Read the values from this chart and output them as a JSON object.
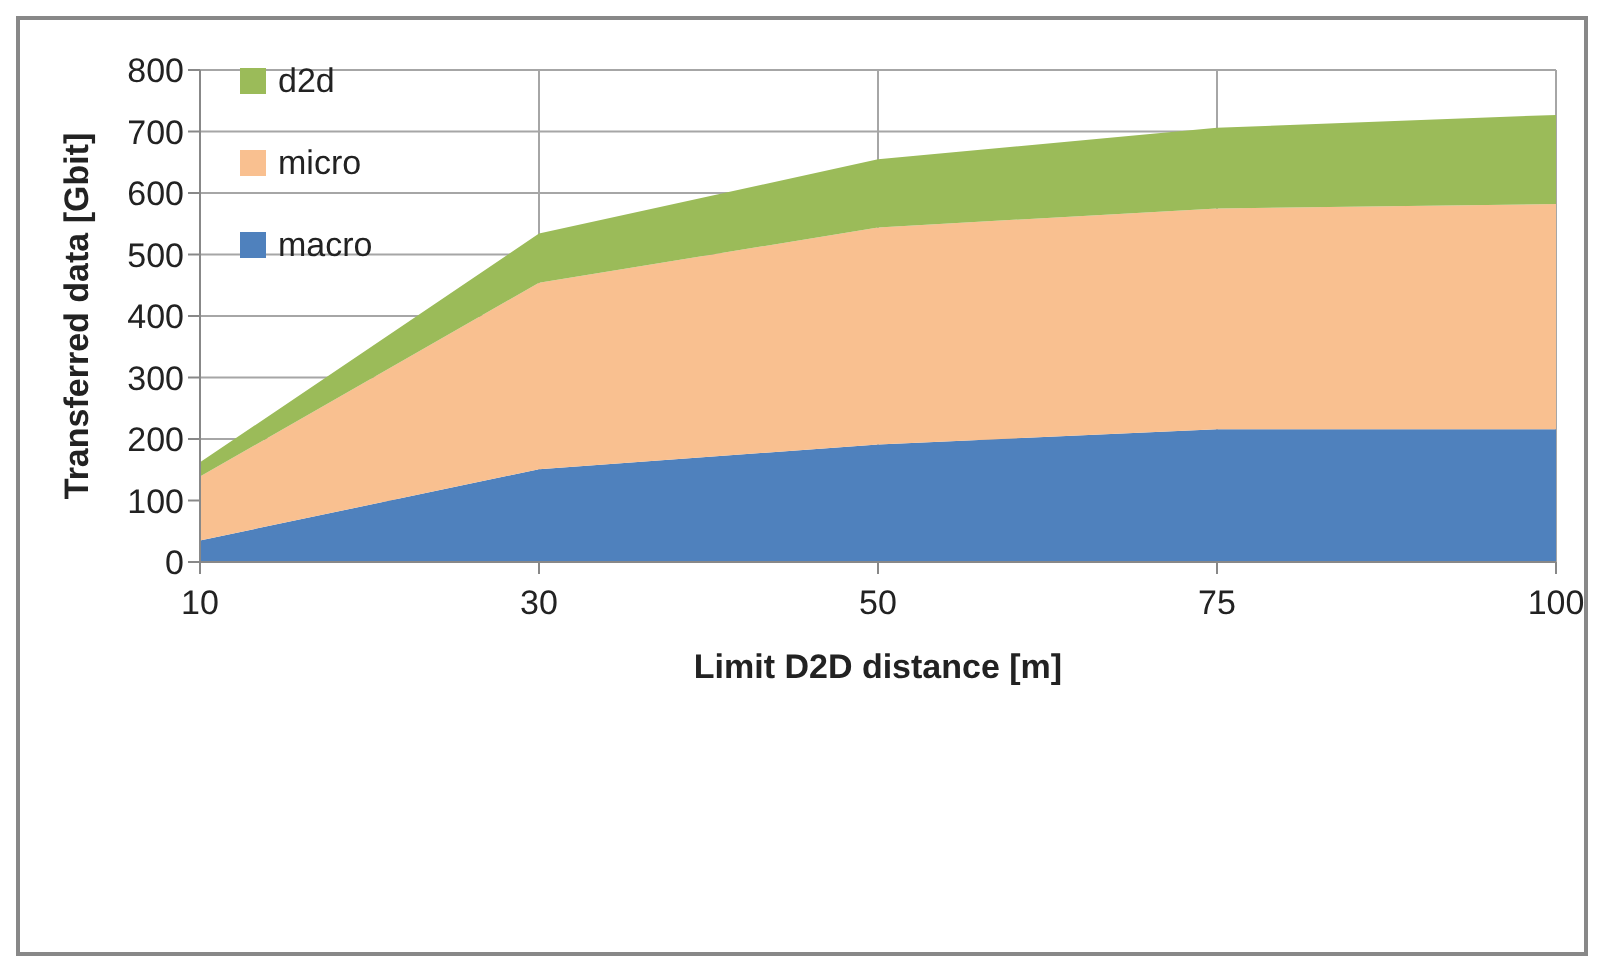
{
  "chart_data": {
    "type": "area",
    "stacked": true,
    "xlabel": "Limit D2D distance  [m]",
    "ylabel": "Transferred data [Gbit]",
    "categories": [
      "10",
      "30",
      "50",
      "75",
      "100"
    ],
    "series": [
      {
        "name": "macro",
        "color": "#4f81bd",
        "values": [
          35,
          151,
          191,
          216,
          216
        ]
      },
      {
        "name": "micro",
        "color": "#f9c090",
        "values": [
          104,
          303,
          353,
          359,
          366
        ]
      },
      {
        "name": "d2d",
        "color": "#9bbb59",
        "values": [
          23,
          80,
          111,
          131,
          145
        ]
      }
    ],
    "ylim": [
      0,
      800
    ],
    "yticks": [
      0,
      100,
      200,
      300,
      400,
      500,
      600,
      700,
      800
    ],
    "grid": true,
    "legend": "top left"
  }
}
